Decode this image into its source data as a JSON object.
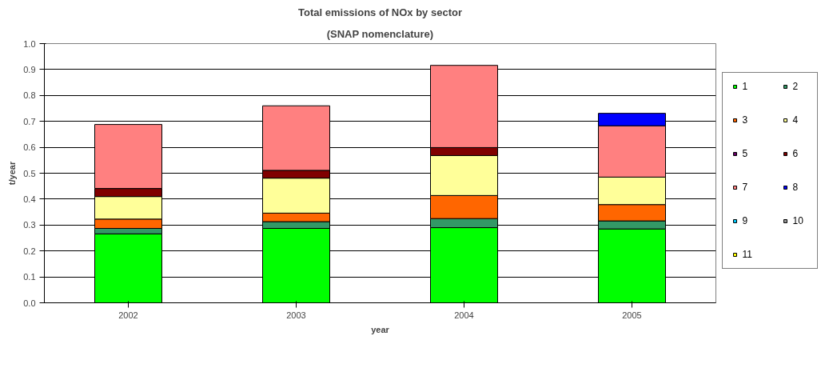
{
  "chart_data": {
    "type": "bar",
    "stacked": true,
    "title": "Total emissions of NOx by sector",
    "subtitle": "(SNAP nomenclature)",
    "xlabel": "year",
    "ylabel": "t/year",
    "categories": [
      "2002",
      "2003",
      "2004",
      "2005"
    ],
    "series": [
      {
        "name": "1",
        "color": "#00ff00",
        "values": [
          0.266,
          0.287,
          0.29,
          0.285
        ]
      },
      {
        "name": "2",
        "color": "#339966",
        "values": [
          0.021,
          0.026,
          0.035,
          0.031
        ]
      },
      {
        "name": "3",
        "color": "#ff6600",
        "values": [
          0.036,
          0.033,
          0.089,
          0.063
        ]
      },
      {
        "name": "4",
        "color": "#ffff99",
        "values": [
          0.087,
          0.135,
          0.154,
          0.106
        ]
      },
      {
        "name": "5",
        "color": "#660066",
        "values": [
          0,
          0,
          0,
          0
        ]
      },
      {
        "name": "6",
        "color": "#800000",
        "values": [
          0.031,
          0.03,
          0.031,
          0
        ]
      },
      {
        "name": "7",
        "color": "#ff8080",
        "values": [
          0.247,
          0.249,
          0.317,
          0.198
        ]
      },
      {
        "name": "8",
        "color": "#0000ff",
        "values": [
          0,
          0,
          0,
          0.048
        ]
      },
      {
        "name": "9",
        "color": "#00ccff",
        "values": [
          0,
          0,
          0,
          0
        ]
      },
      {
        "name": "10",
        "color": "#969696",
        "values": [
          0,
          0,
          0,
          0
        ]
      },
      {
        "name": "11",
        "color": "#ffff00",
        "values": [
          0,
          0,
          0,
          0
        ]
      }
    ],
    "ylim": [
      0,
      1.0
    ],
    "yticks": [
      {
        "value": 0,
        "label": "0.0"
      },
      {
        "value": 0.1,
        "label": "0.1"
      },
      {
        "value": 0.2,
        "label": "0.2"
      },
      {
        "value": 0.3,
        "label": "0.3"
      },
      {
        "value": 0.4,
        "label": "0.4"
      },
      {
        "value": 0.5,
        "label": "0.5"
      },
      {
        "value": 0.6,
        "label": "0.6"
      },
      {
        "value": 0.7,
        "label": "0.7"
      },
      {
        "value": 0.8,
        "label": "0.8"
      },
      {
        "value": 0.9,
        "label": "0.9"
      },
      {
        "value": 1.0,
        "label": "1.0"
      }
    ],
    "grid": "y",
    "legend": "right"
  }
}
